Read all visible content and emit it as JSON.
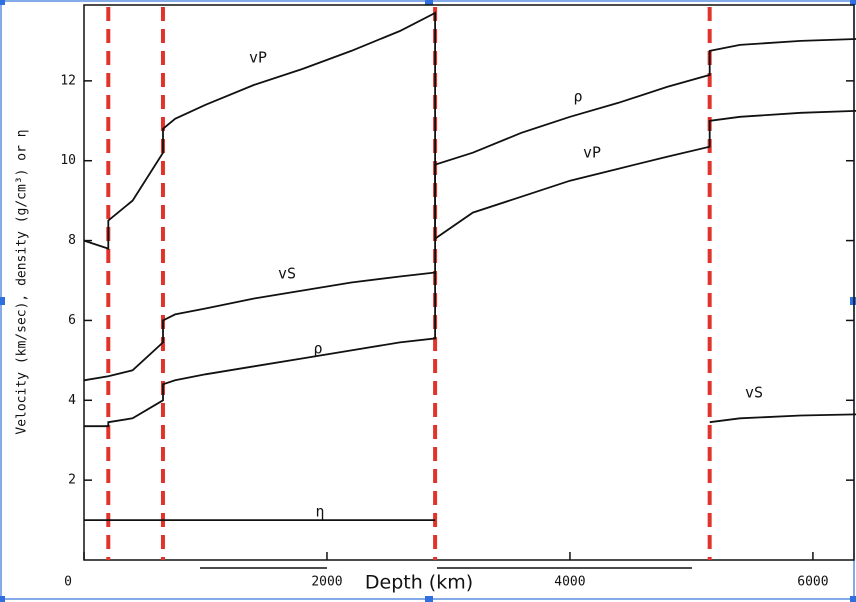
{
  "chart_data": {
    "type": "line",
    "x_label": "Depth (km)",
    "y_label": "Velocity (km/sec), density (g/cm³) or η",
    "xlim": [
      0,
      6371
    ],
    "ylim": [
      0,
      13.9
    ],
    "xticks": [
      0,
      2000,
      4000,
      6000
    ],
    "yticks": [
      2,
      4,
      6,
      8,
      10,
      12
    ],
    "vlines": [
      200,
      650,
      2890,
      5150
    ],
    "vline_color": "#e2332b",
    "x": [
      0,
      200,
      200,
      400,
      650,
      650,
      750,
      1000,
      1400,
      1800,
      2200,
      2600,
      2890,
      2890,
      3200,
      3600,
      4000,
      4400,
      4800,
      5150,
      5150,
      5400,
      5900,
      6371
    ],
    "series": [
      {
        "name": "vP",
        "color": "#111111",
        "values": [
          8.0,
          7.8,
          8.5,
          9.0,
          10.2,
          10.8,
          11.05,
          11.4,
          11.9,
          12.3,
          12.75,
          13.25,
          13.7,
          8.05,
          8.7,
          9.1,
          9.5,
          9.8,
          10.1,
          10.35,
          11.0,
          11.1,
          11.2,
          11.25
        ]
      },
      {
        "name": "vS",
        "color": "#111111",
        "values": [
          4.5,
          4.6,
          4.6,
          4.75,
          5.45,
          6.0,
          6.15,
          6.3,
          6.55,
          6.75,
          6.95,
          7.1,
          7.2,
          null,
          null,
          null,
          null,
          null,
          null,
          null,
          3.45,
          3.55,
          3.62,
          3.65
        ]
      },
      {
        "name": "ρ",
        "color": "#111111",
        "values": [
          3.35,
          3.35,
          3.45,
          3.55,
          4.0,
          4.4,
          4.5,
          4.65,
          4.85,
          5.05,
          5.25,
          5.45,
          5.55,
          9.9,
          10.2,
          10.7,
          11.1,
          11.45,
          11.85,
          12.15,
          12.75,
          12.9,
          13.0,
          13.05
        ]
      },
      {
        "name": "η",
        "color": "#111111",
        "values": [
          1.0,
          1.0,
          1.0,
          1.0,
          1.0,
          1.0,
          1.0,
          1.0,
          1.0,
          1.0,
          1.0,
          1.0,
          1.0,
          null,
          null,
          null,
          null,
          null,
          null,
          null,
          null,
          null,
          null,
          null
        ]
      }
    ]
  }
}
